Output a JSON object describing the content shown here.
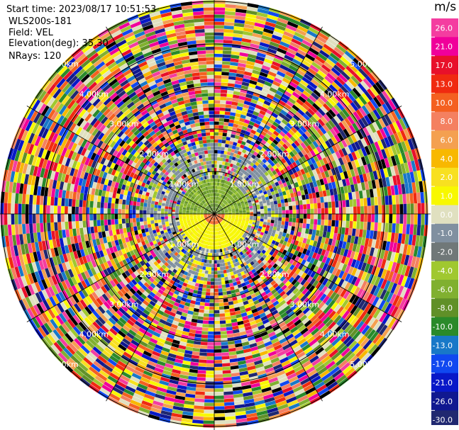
{
  "info": {
    "start_time": "Start time: 2023/08/17 10:51:53",
    "instrument": "WLS200s-181",
    "field": "Field: VEL",
    "elevation": "Elevation(deg): 35.30",
    "nrays": "NRays: 120"
  },
  "colorbar": {
    "unit": "m/s",
    "ticks": [
      "26.0",
      "21.0",
      "17.0",
      "13.0",
      "10.0",
      "8.0",
      "6.0",
      "4.0",
      "2.0",
      "1.0",
      "0.0",
      "-1.0",
      "-2.0",
      "-4.0",
      "-6.0",
      "-8.0",
      "-10.0",
      "-13.0",
      "-17.0",
      "-21.0",
      "-26.0",
      "-30.0"
    ],
    "colors": [
      "#f43da0",
      "#f0009a",
      "#e8102a",
      "#f02a10",
      "#f46020",
      "#f48060",
      "#f4a050",
      "#f8b800",
      "#f8e020",
      "#f8f800",
      "#e0e0c0",
      "#8090a0",
      "#707878",
      "#a0c830",
      "#80b030",
      "#609028",
      "#2a8a2a",
      "#1878c8",
      "#1048f0",
      "#0818c8",
      "#101890",
      "#202870",
      "#000000"
    ]
  },
  "range_labels": {
    "r1": "1.00km",
    "r2": "2.00km",
    "r3": "3.00km",
    "r4": "4.00km",
    "r5": "5.00km"
  },
  "chart_data": {
    "type": "heatmap",
    "projection": "polar PPI",
    "field": "VEL",
    "units": "m/s",
    "nrays": 120,
    "elevation_deg": 35.3,
    "range_rings_km": [
      1,
      2,
      3,
      4,
      5
    ],
    "value_bins": [
      -30,
      -26,
      -21,
      -17,
      -13,
      -10,
      -8,
      -6,
      -4,
      -2,
      -1,
      0,
      1,
      2,
      4,
      6,
      8,
      10,
      13,
      17,
      21,
      26
    ]
  }
}
